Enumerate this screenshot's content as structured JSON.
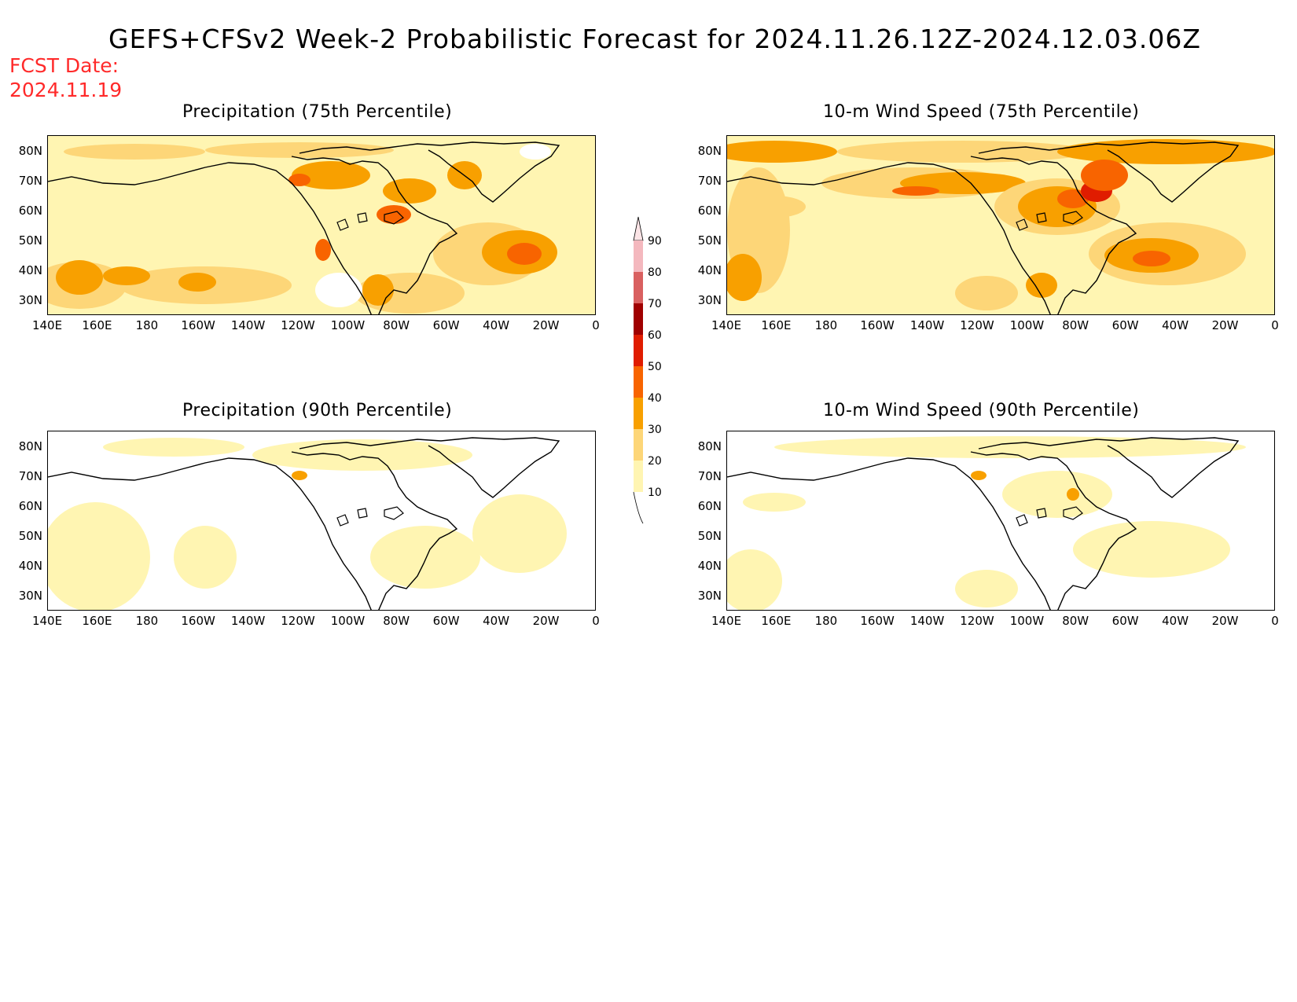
{
  "header": {
    "title": "GEFS+CFSv2 Week-2 Probabilistic Forecast for 2024.11.26.12Z-2024.12.03.06Z",
    "fcst_label": "FCST Date:",
    "fcst_date": "2024.11.19"
  },
  "axes": {
    "lon_labels": [
      "140E",
      "160E",
      "180",
      "160W",
      "140W",
      "120W",
      "100W",
      "80W",
      "60W",
      "40W",
      "20W",
      "0"
    ],
    "lat_labels": [
      "80N",
      "70N",
      "60N",
      "50N",
      "40N",
      "30N"
    ]
  },
  "panels": [
    {
      "title": "Precipitation (75th Percentile)",
      "intensity": "moderate"
    },
    {
      "title": "10-m Wind Speed (75th Percentile)",
      "intensity": "high"
    },
    {
      "title": "Precipitation (90th Percentile)",
      "intensity": "low"
    },
    {
      "title": "10-m Wind Speed (90th Percentile)",
      "intensity": "low"
    }
  ],
  "legend": {
    "levels": [
      "90",
      "80",
      "70",
      "60",
      "50",
      "40",
      "30",
      "20",
      "10"
    ],
    "colors": [
      "#f4b8be",
      "#d96060",
      "#a00000",
      "#e01c00",
      "#f86400",
      "#f8a000",
      "#fdd678",
      "#fff5b2"
    ]
  },
  "palette": {
    "c10": "#fff5b2",
    "c20": "#fdd678",
    "c30": "#f8a000",
    "c40": "#f86400",
    "c50": "#e01c00",
    "c60": "#a00000",
    "coast": "#000000"
  }
}
